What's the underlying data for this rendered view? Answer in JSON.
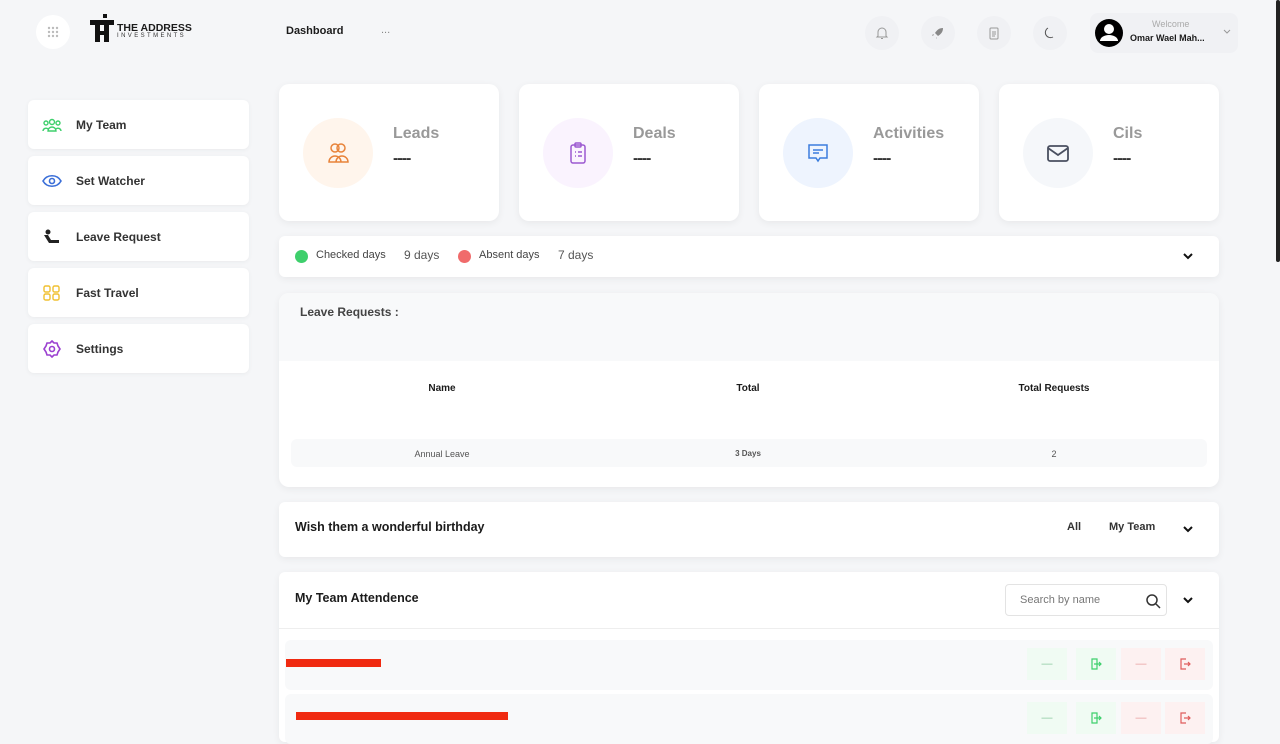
{
  "header": {
    "logo_title": "THE ADDRESS",
    "logo_subtitle": "INVESTMENTS",
    "page_title": "Dashboard",
    "more": "...",
    "welcome": "Welcome",
    "user_name": "Omar Wael Mah..."
  },
  "sidebar": {
    "items": [
      {
        "label": "My Team",
        "icon": "team-icon"
      },
      {
        "label": "Set Watcher",
        "icon": "eye-icon"
      },
      {
        "label": "Leave Request",
        "icon": "leave-icon"
      },
      {
        "label": "Fast Travel",
        "icon": "grid-icon"
      },
      {
        "label": "Settings",
        "icon": "gear-icon"
      }
    ]
  },
  "stats": [
    {
      "label": "Leads",
      "value": "----",
      "color": "#e8833a"
    },
    {
      "label": "Deals",
      "value": "----",
      "color": "#9b59d0"
    },
    {
      "label": "Activities",
      "value": "----",
      "color": "#3b7ddd"
    },
    {
      "label": "Cils",
      "value": "----",
      "color": "#4a5060"
    }
  ],
  "attendance_summary": {
    "checked_label": "Checked days",
    "checked_value": "9 days",
    "absent_label": "Absent days",
    "absent_value": "7 days",
    "checked_color": "#3ecf6c",
    "absent_color": "#f06b6b"
  },
  "leave_requests": {
    "title": "Leave Requests :",
    "columns": [
      "Name",
      "Total",
      "Total Requests"
    ],
    "rows": [
      [
        "Annual Leave",
        "3 Days",
        "2"
      ]
    ]
  },
  "birthday": {
    "title": "Wish them a wonderful birthday",
    "filters": [
      "All",
      "My Team"
    ]
  },
  "team_attendance": {
    "title": "My Team Attendence",
    "search_placeholder": "Search by name",
    "rows": [
      {
        "check_in": "—",
        "check_out": "—"
      },
      {
        "check_in": "—",
        "check_out": "—"
      }
    ]
  }
}
